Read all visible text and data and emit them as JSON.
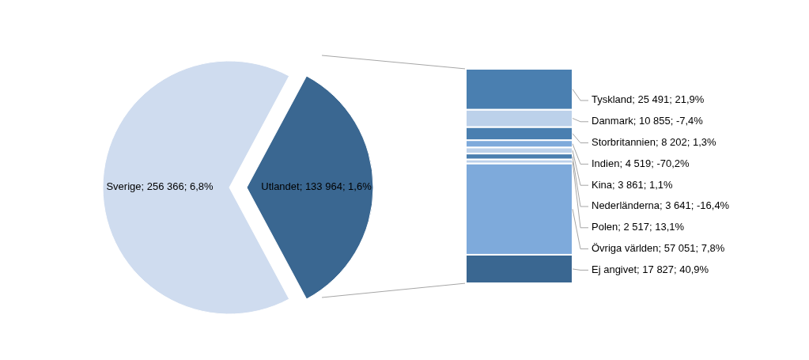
{
  "chart_data": [
    {
      "type": "pie",
      "categories": [
        "Sverige",
        "Utlandet"
      ],
      "values": [
        256366,
        133964
      ],
      "colors": [
        "#cfdcef",
        "#3a6791"
      ],
      "value_labels": [
        "256 366; 6,8%",
        "133 964; 1,6%"
      ]
    },
    {
      "type": "bar",
      "stacked": true,
      "categories": [
        null
      ],
      "series": [
        {
          "color": "#3a6791",
          "values": [
            17827
          ],
          "value_labels": [
            "Ej angivet; 17 827; 40,9%"
          ]
        },
        {
          "color": "#7eaadb",
          "values": [
            57051
          ],
          "value_labels": [
            "Övriga världen; 57 051; 7,8%"
          ]
        },
        {
          "color": "#bcd1ea",
          "values": [
            2517
          ],
          "value_labels": [
            "Polen; 2 517; 13,1%"
          ]
        },
        {
          "color": "#4a7fb0",
          "values": [
            3641
          ],
          "value_labels": [
            "Nederländerna; 3 641; -16,4%"
          ]
        },
        {
          "color": "#bcd1ea",
          "values": [
            3861
          ],
          "value_labels": [
            "Kina; 3 861; 1,1%"
          ]
        },
        {
          "color": "#7eaadb",
          "values": [
            4519
          ],
          "value_labels": [
            "Indien; 4 519; -70,2%"
          ]
        },
        {
          "color": "#4a7fb0",
          "values": [
            8202
          ],
          "value_labels": [
            "Storbritannien; 8 202; 1,3%"
          ]
        },
        {
          "color": "#bcd1ea",
          "values": [
            10855
          ],
          "value_labels": [
            "Danmark; 10 855; -7,4%"
          ]
        },
        {
          "color": "#4a7fb0",
          "values": [
            25491
          ],
          "value_labels": [
            "Tyskland; 25 491; 21,9%"
          ]
        }
      ]
    }
  ]
}
